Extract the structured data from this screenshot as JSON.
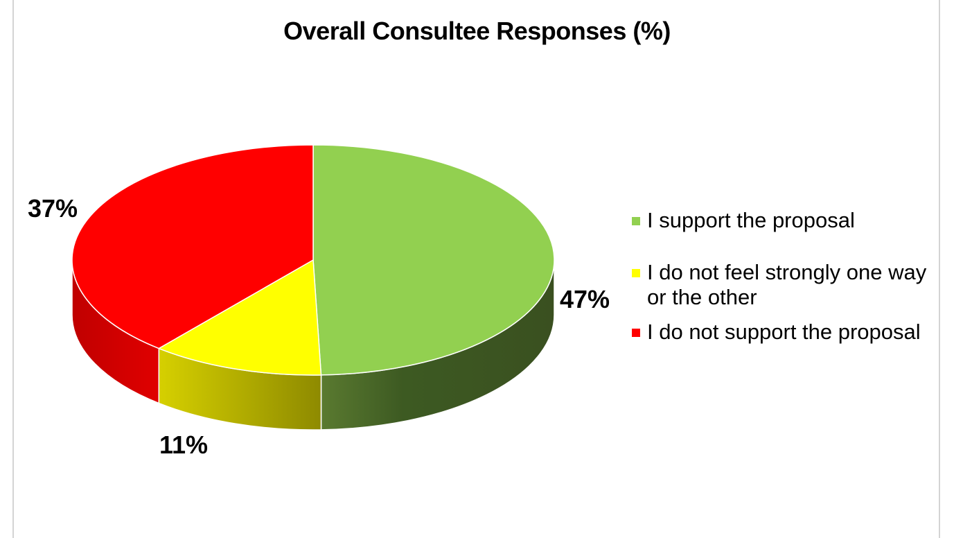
{
  "chart_data": {
    "type": "pie",
    "title": "Overall Consultee Responses (%)",
    "slices": [
      {
        "label": "I support the proposal",
        "value": 47,
        "display": "47%",
        "color": "#92d050"
      },
      {
        "label": "I do not feel strongly one way or the other",
        "value": 11,
        "display": "11%",
        "color": "#ffff00"
      },
      {
        "label": "I do not support the proposal",
        "value": 37,
        "display": "37%",
        "color": "#ff0000"
      }
    ],
    "legend_position": "right",
    "style": "3d"
  }
}
